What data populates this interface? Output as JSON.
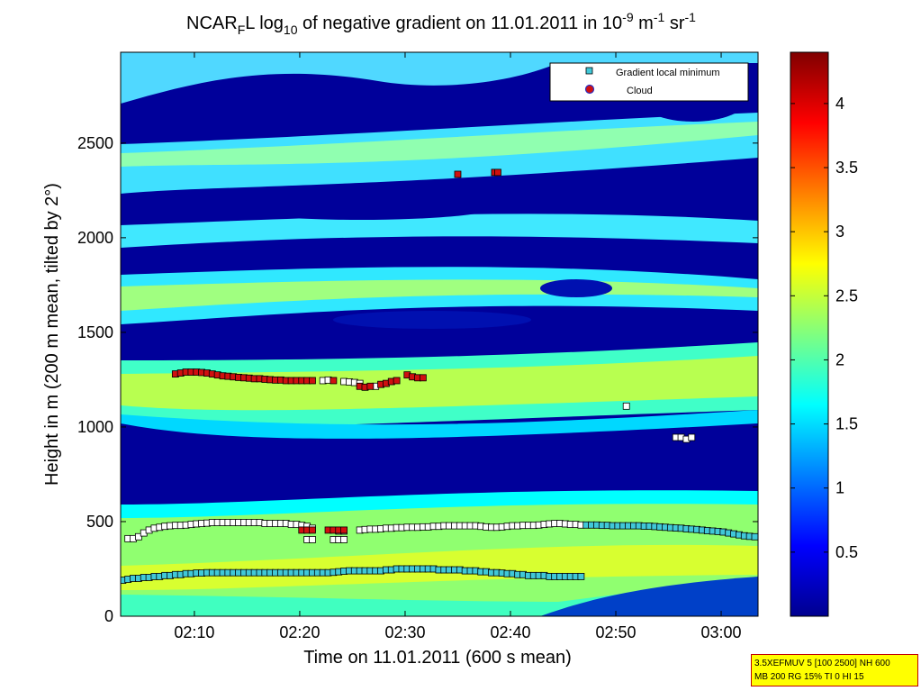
{
  "chart_data": {
    "type": "heatmap",
    "title_parts": {
      "pre": "NCAR",
      "sub1": "F",
      "mid1": "L log",
      "sub2": "10",
      "mid2": " of negative gradient on 11.01.2011 in 10",
      "sup1": "-9",
      "mid3": " m",
      "sup2": "-1",
      "mid4": " sr",
      "sup3": "-1"
    },
    "xlabel": "Time on 11.01.2011 (600 s mean)",
    "ylabel": "Height in m (200 m mean, tilted by 2°)",
    "x_tick_labels": [
      "02:10",
      "02:20",
      "02:30",
      "02:40",
      "02:50",
      "03:00"
    ],
    "x_tick_minutes": [
      10,
      20,
      30,
      40,
      50,
      60
    ],
    "xlim_minutes": [
      3,
      63.5
    ],
    "ylim": [
      0,
      2980
    ],
    "y_ticks": [
      0,
      500,
      1000,
      1500,
      2000,
      2500
    ],
    "colorbar": {
      "ticks": [
        0.5,
        1,
        1.5,
        2,
        2.5,
        3,
        3.5,
        4
      ],
      "tick_labels": [
        "0.5",
        "1",
        "1.5",
        "2",
        "2.5",
        "3",
        "3.5",
        "4"
      ],
      "range": [
        0,
        4.4
      ],
      "colormap": "jet"
    },
    "legend": {
      "position": "top-right",
      "entries": [
        {
          "label": "Gradient local minimum",
          "marker": "square",
          "color": "#40c8d8"
        },
        {
          "label": "Cloud",
          "marker": "circle",
          "color": "#d01010"
        }
      ]
    },
    "series": [
      {
        "name": "Gradient local minimum",
        "points": [
          [
            3.2,
            190
          ],
          [
            3.7,
            195
          ],
          [
            4.2,
            200
          ],
          [
            4.7,
            200
          ],
          [
            5.2,
            205
          ],
          [
            5.7,
            205
          ],
          [
            6.2,
            210
          ],
          [
            6.7,
            210
          ],
          [
            7.2,
            215
          ],
          [
            7.7,
            215
          ],
          [
            8.2,
            220
          ],
          [
            8.7,
            220
          ],
          [
            9.2,
            225
          ],
          [
            9.7,
            225
          ],
          [
            10.2,
            228
          ],
          [
            10.7,
            228
          ],
          [
            11.2,
            230
          ],
          [
            11.7,
            230
          ],
          [
            12.2,
            230
          ],
          [
            12.7,
            230
          ],
          [
            13.2,
            230
          ],
          [
            13.7,
            230
          ],
          [
            14.2,
            230
          ],
          [
            14.7,
            230
          ],
          [
            15.2,
            230
          ],
          [
            15.7,
            230
          ],
          [
            16.2,
            230
          ],
          [
            16.7,
            230
          ],
          [
            17.2,
            230
          ],
          [
            17.7,
            230
          ],
          [
            18.2,
            230
          ],
          [
            18.7,
            230
          ],
          [
            19.2,
            230
          ],
          [
            19.7,
            230
          ],
          [
            20.2,
            230
          ],
          [
            20.7,
            230
          ],
          [
            21.2,
            230
          ],
          [
            21.7,
            230
          ],
          [
            22.2,
            230
          ],
          [
            22.7,
            230
          ],
          [
            23.2,
            232
          ],
          [
            23.7,
            235
          ],
          [
            24.2,
            238
          ],
          [
            24.7,
            240
          ],
          [
            25.2,
            240
          ],
          [
            25.7,
            240
          ],
          [
            26.2,
            240
          ],
          [
            26.7,
            240
          ],
          [
            27.2,
            240
          ],
          [
            27.7,
            240
          ],
          [
            28.2,
            245
          ],
          [
            28.7,
            245
          ],
          [
            29.2,
            250
          ],
          [
            29.7,
            250
          ],
          [
            30.2,
            250
          ],
          [
            30.7,
            250
          ],
          [
            31.2,
            250
          ],
          [
            31.7,
            250
          ],
          [
            32.2,
            250
          ],
          [
            32.7,
            250
          ],
          [
            33.2,
            245
          ],
          [
            33.7,
            245
          ],
          [
            34.2,
            245
          ],
          [
            34.7,
            245
          ],
          [
            35.2,
            245
          ],
          [
            35.7,
            240
          ],
          [
            36.2,
            240
          ],
          [
            36.7,
            240
          ],
          [
            37.2,
            235
          ],
          [
            37.7,
            235
          ],
          [
            38.2,
            230
          ],
          [
            38.7,
            230
          ],
          [
            39.2,
            228
          ],
          [
            39.7,
            225
          ],
          [
            40.2,
            225
          ],
          [
            40.7,
            220
          ],
          [
            41.2,
            220
          ],
          [
            41.7,
            215
          ],
          [
            42.2,
            215
          ],
          [
            42.7,
            215
          ],
          [
            43.2,
            215
          ],
          [
            43.7,
            210
          ],
          [
            44.2,
            210
          ],
          [
            44.7,
            210
          ],
          [
            45.2,
            210
          ],
          [
            45.7,
            210
          ],
          [
            46.2,
            210
          ],
          [
            46.7,
            210
          ],
          [
            3.7,
            410
          ],
          [
            4.2,
            410
          ],
          [
            4.7,
            420
          ],
          [
            5.2,
            440
          ],
          [
            5.7,
            455
          ],
          [
            6.2,
            465
          ],
          [
            6.7,
            470
          ],
          [
            7.2,
            475
          ],
          [
            7.7,
            478
          ],
          [
            8.2,
            480
          ],
          [
            8.7,
            480
          ],
          [
            9.2,
            482
          ],
          [
            9.7,
            485
          ],
          [
            10.2,
            488
          ],
          [
            10.7,
            490
          ],
          [
            11.2,
            492
          ],
          [
            11.7,
            495
          ],
          [
            12.2,
            495
          ],
          [
            12.7,
            495
          ],
          [
            13.2,
            495
          ],
          [
            13.7,
            495
          ],
          [
            14.2,
            495
          ],
          [
            14.7,
            495
          ],
          [
            15.2,
            495
          ],
          [
            15.7,
            495
          ],
          [
            16.2,
            495
          ],
          [
            16.7,
            490
          ],
          [
            17.2,
            490
          ],
          [
            17.7,
            490
          ],
          [
            18.2,
            490
          ],
          [
            18.7,
            490
          ],
          [
            19.2,
            485
          ],
          [
            19.7,
            485
          ],
          [
            20.2,
            480
          ],
          [
            20.7,
            475
          ],
          [
            21.2,
            465
          ],
          [
            25.7,
            455
          ],
          [
            26.2,
            458
          ],
          [
            26.7,
            460
          ],
          [
            27.2,
            460
          ],
          [
            27.7,
            462
          ],
          [
            28.2,
            465
          ],
          [
            28.7,
            465
          ],
          [
            29.2,
            468
          ],
          [
            29.7,
            468
          ],
          [
            30.2,
            470
          ],
          [
            30.7,
            470
          ],
          [
            31.2,
            470
          ],
          [
            31.7,
            472
          ],
          [
            32.2,
            472
          ],
          [
            32.7,
            475
          ],
          [
            33.2,
            475
          ],
          [
            33.7,
            478
          ],
          [
            34.2,
            478
          ],
          [
            34.7,
            478
          ],
          [
            35.2,
            478
          ],
          [
            35.7,
            478
          ],
          [
            36.2,
            478
          ],
          [
            36.7,
            478
          ],
          [
            37.2,
            475
          ],
          [
            37.7,
            472
          ],
          [
            38.2,
            470
          ],
          [
            38.7,
            470
          ],
          [
            39.2,
            472
          ],
          [
            39.7,
            475
          ],
          [
            40.2,
            478
          ],
          [
            40.7,
            478
          ],
          [
            41.2,
            480
          ],
          [
            41.7,
            480
          ],
          [
            42.2,
            480
          ],
          [
            42.7,
            482
          ],
          [
            43.2,
            485
          ],
          [
            43.7,
            488
          ],
          [
            44.2,
            490
          ],
          [
            44.7,
            490
          ],
          [
            45.2,
            488
          ],
          [
            45.7,
            485
          ],
          [
            46.2,
            485
          ],
          [
            46.7,
            482
          ],
          [
            47.2,
            482
          ],
          [
            47.7,
            482
          ],
          [
            48.2,
            482
          ],
          [
            48.7,
            480
          ],
          [
            49.2,
            480
          ],
          [
            49.7,
            478
          ],
          [
            50.2,
            478
          ],
          [
            50.7,
            478
          ],
          [
            51.2,
            478
          ],
          [
            51.7,
            478
          ],
          [
            52.2,
            478
          ],
          [
            52.7,
            476
          ],
          [
            53.2,
            476
          ],
          [
            53.7,
            474
          ],
          [
            54.2,
            472
          ],
          [
            54.7,
            470
          ],
          [
            55.2,
            468
          ],
          [
            55.7,
            466
          ],
          [
            56.2,
            465
          ],
          [
            56.7,
            462
          ],
          [
            57.2,
            460
          ],
          [
            57.7,
            458
          ],
          [
            58.2,
            455
          ],
          [
            58.7,
            452
          ],
          [
            59.2,
            450
          ],
          [
            59.7,
            448
          ],
          [
            60.2,
            445
          ],
          [
            60.7,
            440
          ],
          [
            61.2,
            435
          ],
          [
            61.7,
            430
          ],
          [
            62.2,
            425
          ],
          [
            62.7,
            422
          ],
          [
            63.2,
            420
          ],
          [
            20.7,
            405
          ],
          [
            21.2,
            405
          ],
          [
            23.2,
            405
          ],
          [
            23.7,
            405
          ],
          [
            24.2,
            405
          ],
          [
            23.7,
            450
          ],
          [
            24.2,
            450
          ],
          [
            51.0,
            1110
          ],
          [
            55.7,
            945
          ],
          [
            56.2,
            945
          ],
          [
            56.7,
            935
          ],
          [
            57.2,
            945
          ],
          [
            22.2,
            1245
          ],
          [
            22.7,
            1248
          ],
          [
            24.2,
            1240
          ],
          [
            24.7,
            1238
          ],
          [
            25.2,
            1235
          ],
          [
            25.7,
            1230
          ],
          [
            27.2,
            1215
          ]
        ]
      },
      {
        "name": "Cloud",
        "points": [
          [
            8.2,
            1280
          ],
          [
            8.7,
            1285
          ],
          [
            9.2,
            1290
          ],
          [
            9.7,
            1290
          ],
          [
            10.2,
            1290
          ],
          [
            10.7,
            1288
          ],
          [
            11.2,
            1285
          ],
          [
            11.7,
            1280
          ],
          [
            12.2,
            1275
          ],
          [
            12.7,
            1270
          ],
          [
            13.2,
            1268
          ],
          [
            13.7,
            1265
          ],
          [
            14.2,
            1262
          ],
          [
            14.7,
            1260
          ],
          [
            15.2,
            1258
          ],
          [
            15.7,
            1255
          ],
          [
            16.2,
            1255
          ],
          [
            16.7,
            1252
          ],
          [
            17.2,
            1250
          ],
          [
            17.7,
            1248
          ],
          [
            18.2,
            1248
          ],
          [
            18.7,
            1245
          ],
          [
            19.2,
            1245
          ],
          [
            19.7,
            1245
          ],
          [
            20.2,
            1245
          ],
          [
            20.7,
            1245
          ],
          [
            21.2,
            1245
          ],
          [
            23.2,
            1245
          ],
          [
            25.7,
            1215
          ],
          [
            26.2,
            1210
          ],
          [
            26.7,
            1215
          ],
          [
            27.7,
            1225
          ],
          [
            28.2,
            1230
          ],
          [
            28.7,
            1240
          ],
          [
            29.2,
            1245
          ],
          [
            30.2,
            1275
          ],
          [
            30.7,
            1265
          ],
          [
            31.2,
            1260
          ],
          [
            31.7,
            1260
          ],
          [
            35.0,
            2335
          ],
          [
            38.5,
            2345
          ],
          [
            38.8,
            2345
          ],
          [
            20.2,
            455
          ],
          [
            20.7,
            455
          ],
          [
            21.2,
            455
          ],
          [
            22.7,
            455
          ],
          [
            23.2,
            455
          ],
          [
            23.7,
            455
          ],
          [
            24.2,
            455
          ]
        ]
      }
    ]
  },
  "info_box": {
    "line1": "3.5XEFMUV 5 [100 2500] NH 600",
    "line2": "MB 200 RG 15% TI 0 HI 15"
  }
}
